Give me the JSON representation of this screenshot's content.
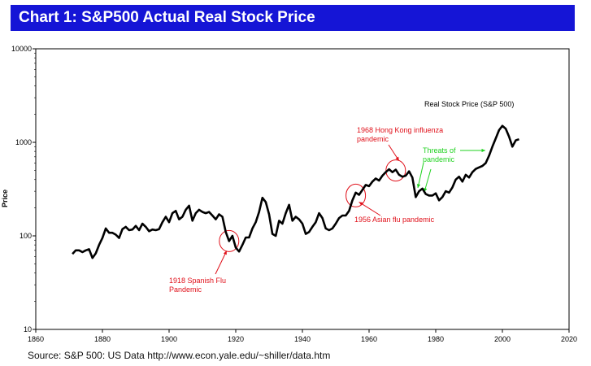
{
  "title": "Chart 1: S&P500 Actual Real Stock Price",
  "source": "Source: S&P 500: US Data http://www.econ.yale.edu/~shiller/data.htm",
  "colors": {
    "title_bg": "#1515d6",
    "title_text": "#ffffff",
    "series": "#000000",
    "red": "#e0101a",
    "green": "#1fd21f"
  },
  "chart_data": {
    "type": "line",
    "title": "Chart 1: S&P500 Actual Real Stock Price",
    "xlabel": "",
    "ylabel": "Price",
    "yscale": "log",
    "xlim": [
      1860,
      2020
    ],
    "ylim": [
      10,
      10000
    ],
    "x_ticks": [
      1860,
      1880,
      1900,
      1920,
      1940,
      1960,
      1980,
      2000,
      2020
    ],
    "y_ticks": [
      10,
      100,
      1000,
      10000
    ],
    "grid": false,
    "legend": "Real Stock Price (S&P 500)",
    "series": [
      {
        "name": "Real Stock Price (S&P 500)",
        "x": [
          1871,
          1872,
          1873,
          1874,
          1875,
          1876,
          1877,
          1878,
          1879,
          1880,
          1881,
          1882,
          1883,
          1884,
          1885,
          1886,
          1887,
          1888,
          1889,
          1890,
          1891,
          1892,
          1893,
          1894,
          1895,
          1896,
          1897,
          1898,
          1899,
          1900,
          1901,
          1902,
          1903,
          1904,
          1905,
          1906,
          1907,
          1908,
          1909,
          1910,
          1911,
          1912,
          1913,
          1914,
          1915,
          1916,
          1917,
          1918,
          1919,
          1920,
          1921,
          1922,
          1923,
          1924,
          1925,
          1926,
          1927,
          1928,
          1929,
          1930,
          1931,
          1932,
          1933,
          1934,
          1935,
          1936,
          1937,
          1938,
          1939,
          1940,
          1941,
          1942,
          1943,
          1944,
          1945,
          1946,
          1947,
          1948,
          1949,
          1950,
          1951,
          1952,
          1953,
          1954,
          1955,
          1956,
          1957,
          1958,
          1959,
          1960,
          1961,
          1962,
          1963,
          1964,
          1965,
          1966,
          1967,
          1968,
          1969,
          1970,
          1971,
          1972,
          1973,
          1974,
          1975,
          1976,
          1977,
          1978,
          1979,
          1980,
          1981,
          1982,
          1983,
          1984,
          1985,
          1986,
          1987,
          1988,
          1989,
          1990,
          1991,
          1992,
          1993,
          1994,
          1995,
          1996,
          1997,
          1998,
          1999,
          2000,
          2001,
          2002,
          2003,
          2004,
          2005
        ],
        "values": [
          64,
          70,
          70,
          67,
          70,
          72,
          58,
          65,
          80,
          95,
          120,
          108,
          108,
          103,
          95,
          118,
          125,
          115,
          117,
          128,
          115,
          135,
          125,
          112,
          117,
          115,
          118,
          140,
          160,
          140,
          175,
          185,
          150,
          160,
          190,
          210,
          145,
          175,
          190,
          180,
          175,
          180,
          165,
          150,
          170,
          160,
          110,
          88,
          100,
          75,
          68,
          80,
          96,
          96,
          120,
          140,
          180,
          255,
          230,
          170,
          105,
          100,
          145,
          135,
          175,
          215,
          145,
          160,
          150,
          135,
          105,
          110,
          125,
          140,
          175,
          155,
          120,
          115,
          120,
          135,
          155,
          165,
          165,
          185,
          240,
          290,
          275,
          310,
          350,
          340,
          380,
          410,
          390,
          440,
          480,
          515,
          480,
          510,
          450,
          430,
          440,
          490,
          420,
          260,
          300,
          320,
          280,
          270,
          270,
          285,
          240,
          260,
          300,
          290,
          330,
          400,
          430,
          380,
          450,
          420,
          480,
          520,
          540,
          560,
          600,
          720,
          900,
          1100,
          1350,
          1500,
          1400,
          1150,
          900,
          1050,
          1080
        ]
      }
    ],
    "annotations": [
      {
        "text": "1918 Spanish Flu Pandemic",
        "lines": [
          "1918 Spanish Flu",
          "Pandemic"
        ],
        "x": 1918,
        "y": 88,
        "color": "red"
      },
      {
        "text": "1956 Asian flu pandemic",
        "lines": [
          "1956 Asian flu pandemic"
        ],
        "x": 1956,
        "y": 270,
        "color": "red"
      },
      {
        "text": "1968 Hong Kong influenza pandemic",
        "lines": [
          "1968 Hong Kong influenza",
          "pandemic"
        ],
        "x": 1968,
        "y": 500,
        "color": "red"
      },
      {
        "text": "Threats of pandemic",
        "lines": [
          "Threats of",
          "pandemic"
        ],
        "x": 1997,
        "y": 780,
        "color": "green"
      }
    ]
  }
}
